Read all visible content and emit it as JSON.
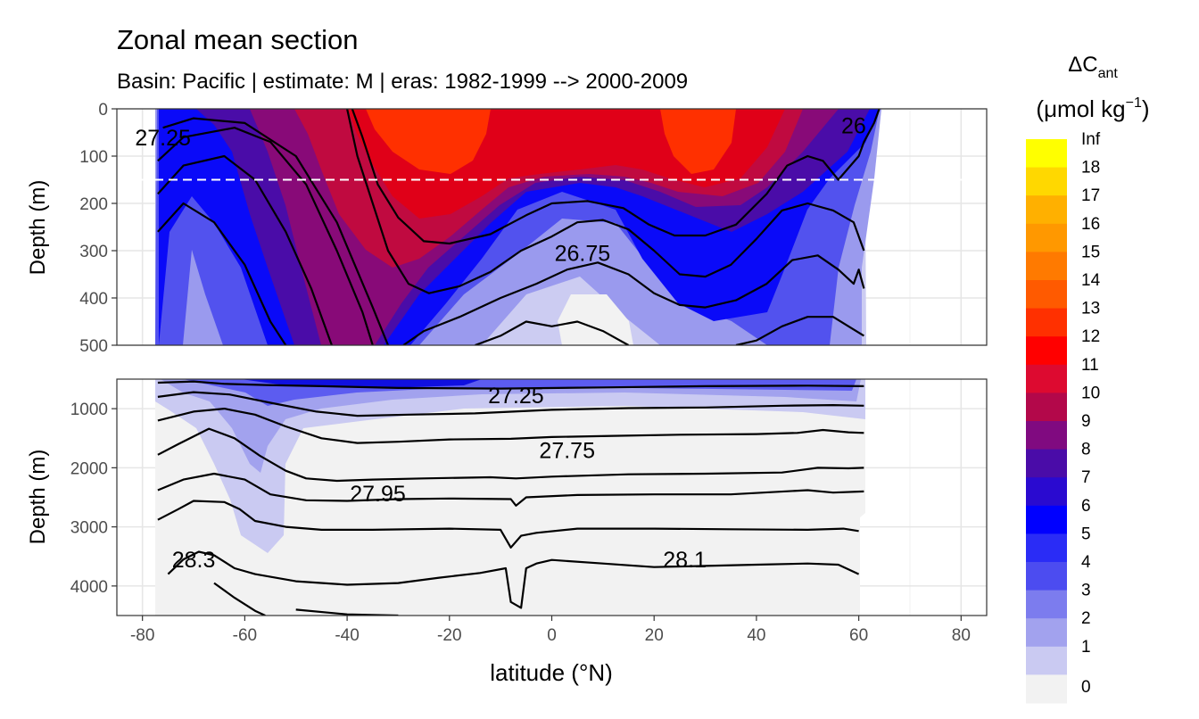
{
  "chart_data": {
    "type": "heatmap",
    "title": "Zonal mean section",
    "subtitle": "Basin: Pacific | estimate: M  | eras: 1982-1999 --> 2000-2009",
    "xlabel": "latitude (°N)",
    "ylabel": "Depth (m)",
    "x_ticks": [
      -80,
      -60,
      -40,
      -20,
      0,
      20,
      40,
      60,
      80
    ],
    "xlim": [
      -85,
      85
    ],
    "grid": true,
    "legend_position": "right",
    "panels": [
      {
        "name": "upper",
        "ylim": [
          500,
          0
        ],
        "y_ticks": [
          0,
          100,
          200,
          300,
          400,
          500
        ],
        "reference_line_depth": 150
      },
      {
        "name": "lower",
        "ylim": [
          4500,
          500
        ],
        "y_ticks": [
          1000,
          2000,
          3000,
          4000
        ]
      }
    ],
    "legend": {
      "title_main": "ΔC",
      "title_sub": "ant",
      "unit_main": "(μmol kg",
      "unit_sup": "−1",
      "unit_close": ")",
      "labels": [
        "Inf",
        "18",
        "17",
        "16",
        "15",
        "14",
        "13",
        "12",
        "11",
        "10",
        "9",
        "8",
        "7",
        "6",
        "5",
        "4",
        "3",
        "2",
        "1",
        "0"
      ],
      "colors": [
        "#ffff00",
        "#ffd800",
        "#ffb000",
        "#ff9800",
        "#ff7a00",
        "#ff5a00",
        "#ff3000",
        "#ff0000",
        "#dd0a30",
        "#b3084a",
        "#800a80",
        "#4a0ca8",
        "#2a0ad0",
        "#0000ff",
        "#2a2cf6",
        "#4c4cf0",
        "#7c7cee",
        "#a2a2ee",
        "#cacaf2",
        "#f2f2f2"
      ]
    },
    "contour_labels": [
      {
        "text": "27.25",
        "x": -76,
        "y": 60
      },
      {
        "text": "26",
        "x": 59,
        "y": 35
      },
      {
        "text": "26.75",
        "x": 6,
        "y": 305
      },
      {
        "text": "27.25",
        "x": -7,
        "y": 770
      },
      {
        "text": "27.75",
        "x": 3,
        "y": 1700
      },
      {
        "text": "27.95",
        "x": -34,
        "y": 2430
      },
      {
        "text": "28.3",
        "x": -70,
        "y": 3550
      },
      {
        "text": "28.1",
        "x": 26,
        "y": 3550
      }
    ],
    "upper_isopycnals": [
      [
        [
          -77,
          260
        ],
        [
          -72,
          200
        ],
        [
          -66,
          240
        ],
        [
          -60,
          330
        ],
        [
          -55,
          450
        ],
        [
          -52,
          500
        ]
      ],
      [
        [
          -77,
          180
        ],
        [
          -72,
          120
        ],
        [
          -64,
          100
        ],
        [
          -58,
          150
        ],
        [
          -52,
          260
        ],
        [
          -47,
          380
        ],
        [
          -43,
          500
        ]
      ],
      [
        [
          -77,
          110
        ],
        [
          -72,
          60
        ],
        [
          -62,
          40
        ],
        [
          -55,
          70
        ],
        [
          -48,
          160
        ],
        [
          -42,
          300
        ],
        [
          -37,
          430
        ],
        [
          -35,
          500
        ]
      ],
      [
        [
          -76,
          40
        ],
        [
          -70,
          20
        ],
        [
          -60,
          30
        ],
        [
          -50,
          100
        ],
        [
          -42,
          240
        ],
        [
          -35,
          420
        ],
        [
          -32,
          500
        ]
      ],
      [
        [
          -39,
          0
        ],
        [
          -37,
          60
        ],
        [
          -34,
          160
        ],
        [
          -30,
          230
        ],
        [
          -25,
          280
        ],
        [
          -20,
          285
        ],
        [
          -12,
          265
        ],
        [
          -5,
          225
        ],
        [
          0,
          200
        ],
        [
          7,
          195
        ],
        [
          14,
          210
        ],
        [
          19,
          245
        ],
        [
          24,
          268
        ],
        [
          30,
          268
        ],
        [
          36,
          245
        ],
        [
          42,
          180
        ],
        [
          46,
          120
        ],
        [
          50,
          100
        ],
        [
          53,
          110
        ],
        [
          56,
          150
        ],
        [
          60,
          100
        ],
        [
          61,
          70
        ],
        [
          63,
          30
        ],
        [
          64,
          0
        ]
      ],
      [
        [
          -40,
          0
        ],
        [
          -38,
          100
        ],
        [
          -35,
          200
        ],
        [
          -32,
          300
        ],
        [
          -28,
          370
        ],
        [
          -24,
          390
        ],
        [
          -18,
          375
        ],
        [
          -12,
          345
        ],
        [
          -6,
          300
        ],
        [
          0,
          270
        ],
        [
          5,
          240
        ],
        [
          10,
          235
        ],
        [
          15,
          255
        ],
        [
          20,
          300
        ],
        [
          25,
          350
        ],
        [
          30,
          355
        ],
        [
          35,
          330
        ],
        [
          40,
          275
        ],
        [
          45,
          215
        ],
        [
          50,
          200
        ],
        [
          55,
          215
        ],
        [
          59,
          240
        ],
        [
          61,
          300
        ]
      ],
      [
        [
          -29,
          500
        ],
        [
          -25,
          470
        ],
        [
          -18,
          440
        ],
        [
          -10,
          400
        ],
        [
          -3,
          370
        ],
        [
          3,
          340
        ],
        [
          9,
          325
        ],
        [
          15,
          350
        ],
        [
          20,
          390
        ],
        [
          25,
          415
        ],
        [
          30,
          420
        ],
        [
          36,
          405
        ],
        [
          42,
          370
        ],
        [
          47,
          320
        ],
        [
          52,
          310
        ],
        [
          56,
          340
        ],
        [
          59,
          370
        ],
        [
          60,
          340
        ],
        [
          61,
          380
        ]
      ],
      [
        [
          -15,
          500
        ],
        [
          -10,
          480
        ],
        [
          -5,
          450
        ],
        [
          0,
          460
        ],
        [
          5,
          450
        ],
        [
          10,
          470
        ],
        [
          15,
          500
        ]
      ],
      [
        [
          36,
          500
        ],
        [
          40,
          490
        ],
        [
          45,
          460
        ],
        [
          50,
          440
        ],
        [
          55,
          440
        ],
        [
          58,
          460
        ],
        [
          61,
          480
        ]
      ]
    ],
    "lower_isopycnals": [
      [
        [
          -77,
          560
        ],
        [
          -70,
          540
        ],
        [
          -64,
          580
        ],
        [
          -56,
          600
        ],
        [
          -45,
          620
        ],
        [
          -30,
          650
        ],
        [
          -10,
          660
        ],
        [
          10,
          640
        ],
        [
          30,
          620
        ],
        [
          50,
          610
        ],
        [
          61,
          620
        ]
      ],
      [
        [
          -77,
          800
        ],
        [
          -70,
          720
        ],
        [
          -63,
          760
        ],
        [
          -55,
          900
        ],
        [
          -46,
          1050
        ],
        [
          -38,
          1120
        ],
        [
          -28,
          1100
        ],
        [
          -15,
          1080
        ],
        [
          0,
          1020
        ],
        [
          15,
          990
        ],
        [
          30,
          980
        ],
        [
          45,
          950
        ],
        [
          55,
          940
        ],
        [
          61,
          950
        ]
      ],
      [
        [
          -77,
          1200
        ],
        [
          -70,
          1050
        ],
        [
          -64,
          1000
        ],
        [
          -58,
          1100
        ],
        [
          -52,
          1300
        ],
        [
          -45,
          1500
        ],
        [
          -38,
          1580
        ],
        [
          -30,
          1560
        ],
        [
          -20,
          1520
        ],
        [
          -8,
          1510
        ],
        [
          0,
          1480
        ],
        [
          12,
          1460
        ],
        [
          25,
          1440
        ],
        [
          40,
          1430
        ],
        [
          48,
          1410
        ],
        [
          53,
          1360
        ],
        [
          58,
          1400
        ],
        [
          61,
          1410
        ]
      ],
      [
        [
          -77,
          1780
        ],
        [
          -73,
          1600
        ],
        [
          -67,
          1340
        ],
        [
          -62,
          1500
        ],
        [
          -57,
          1800
        ],
        [
          -52,
          2050
        ],
        [
          -48,
          2180
        ],
        [
          -42,
          2220
        ],
        [
          -35,
          2200
        ],
        [
          -25,
          2180
        ],
        [
          -12,
          2160
        ],
        [
          -7,
          2180
        ],
        [
          0,
          2150
        ],
        [
          15,
          2110
        ],
        [
          30,
          2100
        ],
        [
          45,
          2080
        ],
        [
          52,
          2000
        ],
        [
          58,
          2010
        ],
        [
          61,
          2000
        ]
      ],
      [
        [
          -77,
          2380
        ],
        [
          -72,
          2200
        ],
        [
          -66,
          2100
        ],
        [
          -60,
          2200
        ],
        [
          -55,
          2450
        ],
        [
          -48,
          2550
        ],
        [
          -40,
          2560
        ],
        [
          -30,
          2530
        ],
        [
          -20,
          2520
        ],
        [
          -8,
          2530
        ],
        [
          -7,
          2640
        ],
        [
          -5,
          2500
        ],
        [
          5,
          2460
        ],
        [
          20,
          2450
        ],
        [
          35,
          2450
        ],
        [
          50,
          2380
        ],
        [
          55,
          2420
        ],
        [
          61,
          2400
        ]
      ],
      [
        [
          -77,
          2880
        ],
        [
          -73,
          2700
        ],
        [
          -70,
          2560
        ],
        [
          -64,
          2580
        ],
        [
          -61,
          2700
        ],
        [
          -58,
          2900
        ],
        [
          -52,
          3000
        ],
        [
          -45,
          3050
        ],
        [
          -35,
          3050
        ],
        [
          -20,
          3030
        ],
        [
          -10,
          3050
        ],
        [
          -8,
          3350
        ],
        [
          -6,
          3150
        ],
        [
          -3,
          3100
        ],
        [
          5,
          3030
        ],
        [
          20,
          3030
        ],
        [
          35,
          3040
        ],
        [
          50,
          3050
        ],
        [
          57,
          3030
        ],
        [
          60,
          3070
        ]
      ],
      [
        [
          -75,
          3800
        ],
        [
          -72,
          3550
        ],
        [
          -69,
          3420
        ],
        [
          -66,
          3480
        ],
        [
          -62,
          3700
        ],
        [
          -58,
          3800
        ],
        [
          -50,
          3920
        ],
        [
          -40,
          3980
        ],
        [
          -30,
          3950
        ],
        [
          -22,
          3860
        ],
        [
          -14,
          3780
        ],
        [
          -9,
          3700
        ],
        [
          -8,
          4270
        ],
        [
          -6,
          4370
        ],
        [
          -5,
          3700
        ],
        [
          -3,
          3620
        ],
        [
          0,
          3560
        ],
        [
          10,
          3620
        ],
        [
          20,
          3680
        ],
        [
          30,
          3660
        ],
        [
          40,
          3640
        ],
        [
          50,
          3620
        ],
        [
          56,
          3640
        ],
        [
          60,
          3800
        ]
      ],
      [
        [
          -66,
          3950
        ],
        [
          -62,
          4200
        ],
        [
          -58,
          4420
        ],
        [
          -56,
          4500
        ]
      ],
      [
        [
          -50,
          4400
        ],
        [
          -40,
          4480
        ],
        [
          -30,
          4500
        ]
      ]
    ]
  }
}
